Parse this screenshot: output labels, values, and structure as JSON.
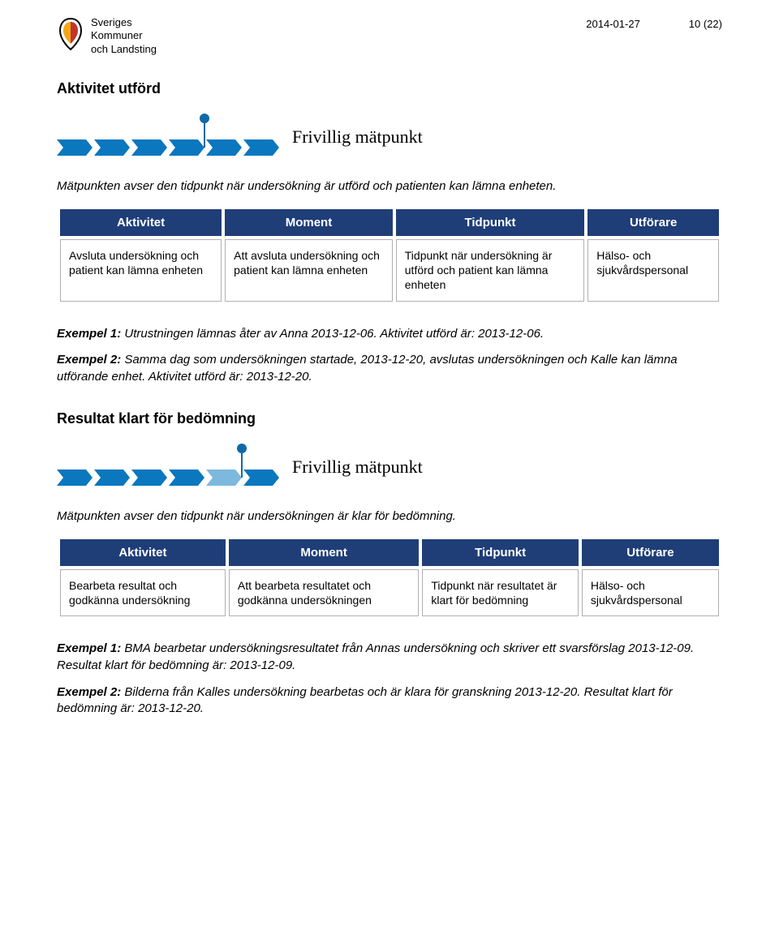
{
  "header": {
    "org_line1": "Sveriges",
    "org_line2": "Kommuner",
    "org_line3": "och Landsting",
    "date": "2014-01-27",
    "page_label": "10 (22)"
  },
  "colors": {
    "brand_blue": "#1f3e78",
    "arrow_blue": "#0a77bf",
    "arrow_light": "#7db8de",
    "dot_blue": "#1169a8",
    "border_gray": "#b0b0b0",
    "text_black": "#000000"
  },
  "section1": {
    "title": "Aktivitet utförd",
    "timeline_label": "Frivillig mätpunkt",
    "intro": "Mätpunkten avser den tidpunkt när undersökning är utförd och patienten kan lämna enheten.",
    "headers": [
      "Aktivitet",
      "Moment",
      "Tidpunkt",
      "Utförare"
    ],
    "row": {
      "c0": "Avsluta undersökning och patient kan lämna enheten",
      "c1": "Att avsluta undersökning och patient kan lämna enheten",
      "c2": "Tidpunkt när undersökning är utförd och patient kan lämna enheten",
      "c3": "Hälso- och sjukvårdspersonal"
    },
    "ex1_bold": "Exempel 1:",
    "ex1_body": " Utrustningen lämnas åter av Anna 2013-12-06. Aktivitet utförd är: 2013-12-06.",
    "ex2_bold": "Exempel 2:",
    "ex2_body": " Samma dag som undersökningen startade, 2013-12-20, avslutas undersökningen och Kalle kan lämna utförande enhet. Aktivitet utförd är: 2013-12-20."
  },
  "section2": {
    "title": "Resultat klart för bedömning",
    "timeline_label": "Frivillig mätpunkt",
    "intro": "Mätpunkten avser den tidpunkt när undersökningen är klar för bedömning.",
    "headers": [
      "Aktivitet",
      "Moment",
      "Tidpunkt",
      "Utförare"
    ],
    "row": {
      "c0": "Bearbeta resultat och godkänna undersökning",
      "c1": "Att bearbeta resultatet och godkänna undersökningen",
      "c2": "Tidpunkt när resultatet är klart för bedömning",
      "c3": "Hälso- och sjukvårdspersonal"
    },
    "ex1_bold": "Exempel 1:",
    "ex1_body": " BMA bearbetar undersökningsresultatet från Annas undersökning och skriver ett svarsförslag 2013-12-09. Resultat klart för bedömning är: 2013-12-09.",
    "ex2_bold": "Exempel 2:",
    "ex2_body": " Bilderna från Kalles undersökning bearbetas och är klara för granskning 2013-12-20. Resultat klart för bedömning är: 2013-12-20."
  },
  "timeline1": {
    "arrows": 6,
    "highlight_index": -1,
    "dot_after_index": 3
  },
  "timeline2": {
    "arrows": 6,
    "highlight_index": 4,
    "dot_after_index": 4
  }
}
